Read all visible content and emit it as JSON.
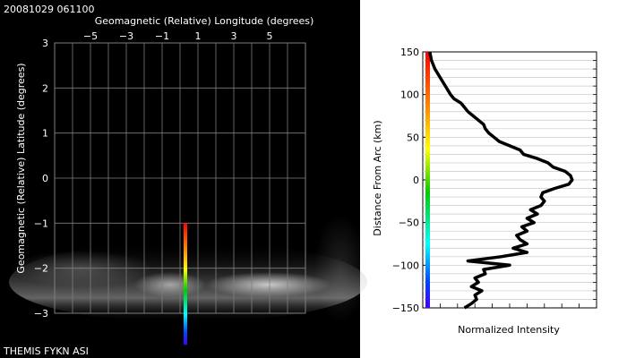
{
  "timestamp": "20081029 061100",
  "footer": "THEMIS FYKN ASI",
  "left_panel": {
    "xlabel": "Geomagnetic (Relative) Longitude (degrees)",
    "ylabel": "Geomagnetic (Relative) Latitude (degrees)",
    "xlim": [
      -7,
      7
    ],
    "ylim": [
      -3,
      3
    ],
    "xticks": [
      -5,
      -3,
      -1,
      1,
      3,
      5
    ],
    "xtick_labels": [
      "−5",
      "−3",
      "−1",
      "1",
      "3",
      "5"
    ],
    "yticks": [
      3,
      2,
      1,
      0,
      -1,
      -2,
      -3
    ],
    "ytick_labels": [
      "3",
      "2",
      "1",
      "0",
      "−1",
      "−2",
      "−3"
    ],
    "grid": true,
    "background": "#000000",
    "grid_color": "#7f7f7f",
    "text_color": "#ffffff"
  },
  "right_panel": {
    "ylabel": "Distance From Arc (km)",
    "xlabel": "Normalized Intensity",
    "ylim": [
      -150,
      150
    ],
    "yticks": [
      150,
      100,
      50,
      0,
      -50,
      -100,
      -150
    ],
    "ytick_labels": [
      "150",
      "100",
      "50",
      "0",
      "−50",
      "−100",
      "−150"
    ],
    "grid": true,
    "line_color": "#000000"
  },
  "chart_data": [
    {
      "type": "line",
      "name": "latitude-colorbar-overlay",
      "x": [
        0.3,
        0.3
      ],
      "y": [
        -1.0,
        -3.7
      ],
      "colormap": "rainbow (red at top, violet at bottom)"
    },
    {
      "type": "line",
      "name": "intensity-profile",
      "xlabel": "Normalized Intensity",
      "ylabel": "Distance From Arc (km)",
      "ylim": [
        -150,
        150
      ],
      "xlim": [
        0,
        1
      ],
      "y": [
        150,
        140,
        130,
        120,
        110,
        100,
        95,
        90,
        85,
        80,
        75,
        70,
        65,
        60,
        55,
        50,
        45,
        40,
        35,
        30,
        25,
        20,
        15,
        10,
        5,
        0,
        -5,
        -10,
        -15,
        -20,
        -25,
        -30,
        -35,
        -40,
        -45,
        -50,
        -55,
        -60,
        -65,
        -70,
        -75,
        -80,
        -85,
        -90,
        -95,
        -100,
        -105,
        -110,
        -115,
        -120,
        -125,
        -130,
        -135,
        -140,
        -145,
        -150
      ],
      "x": [
        0.04,
        0.05,
        0.07,
        0.1,
        0.13,
        0.16,
        0.18,
        0.22,
        0.24,
        0.26,
        0.29,
        0.32,
        0.35,
        0.36,
        0.38,
        0.41,
        0.44,
        0.5,
        0.56,
        0.58,
        0.66,
        0.72,
        0.75,
        0.82,
        0.85,
        0.86,
        0.84,
        0.76,
        0.69,
        0.68,
        0.7,
        0.68,
        0.62,
        0.66,
        0.6,
        0.64,
        0.57,
        0.6,
        0.54,
        0.56,
        0.6,
        0.52,
        0.6,
        0.45,
        0.26,
        0.5,
        0.35,
        0.36,
        0.3,
        0.32,
        0.28,
        0.34,
        0.3,
        0.31,
        0.28,
        0.24
      ]
    }
  ]
}
